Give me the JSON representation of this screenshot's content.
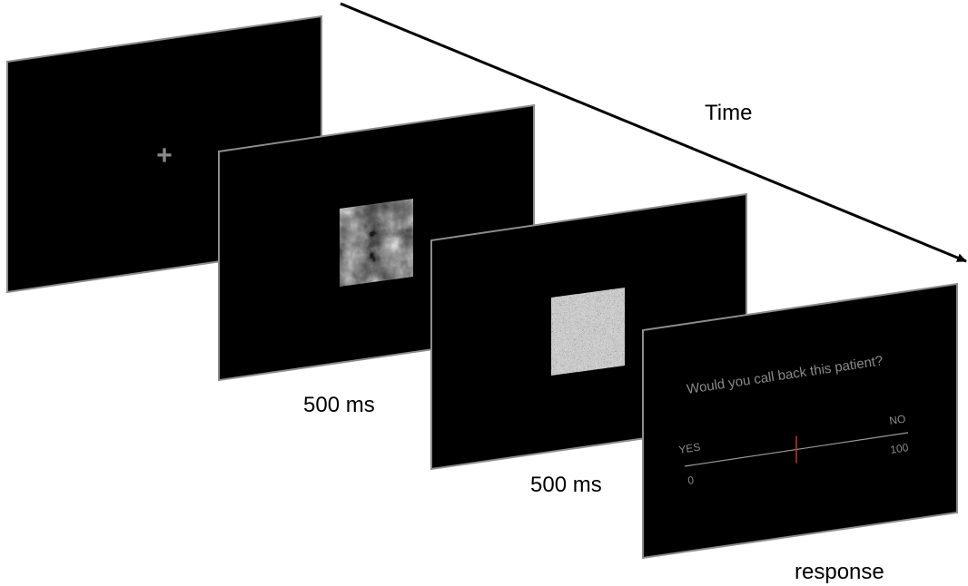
{
  "time_label": "Time",
  "captions": {
    "stimulus_duration": "500 ms",
    "mask_duration": "500 ms",
    "response": "response"
  },
  "fixation": {
    "symbol": "+"
  },
  "response_screen": {
    "question": "Would you call back this patient?",
    "scale_left_label": "YES",
    "scale_right_label": "NO",
    "scale_min": "0",
    "scale_max": "100",
    "slider_value": 50
  },
  "colors": {
    "screen_fill": "#000000",
    "screen_border": "#8c8c8c",
    "fixation_cross": "#8a8a8a",
    "question_text": "#8a8a8a",
    "scale_line": "#9a9a9a",
    "slider_marker": "#c0392b",
    "arrow": "#000000"
  }
}
